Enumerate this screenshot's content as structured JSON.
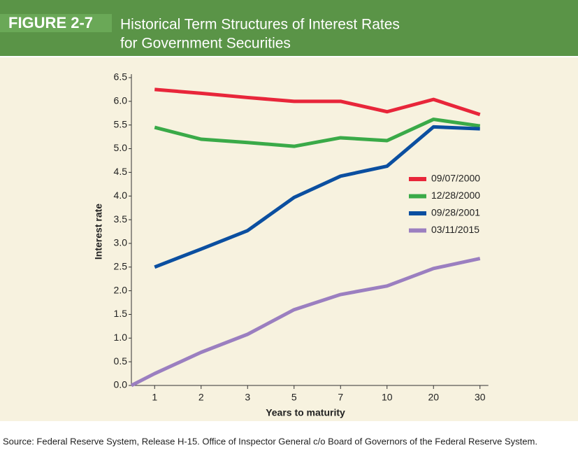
{
  "chart_data": {
    "type": "line",
    "figure_label": "FIGURE 2-7",
    "title": [
      "Historical Term Structures of Interest Rates",
      "for Government Securities"
    ],
    "y_label": "Interest rate",
    "x_label": "Years to maturity",
    "source": "Source: Federal Reserve System, Release H-15. Office of Inspector General c/o Board of Governors of the Federal Reserve System.",
    "categories": [
      null,
      "1",
      "2",
      "3",
      "5",
      "7",
      "10",
      "20",
      "30"
    ],
    "series": [
      {
        "name": "09/07/2000",
        "color": "#e8263a",
        "values": [
          null,
          6.25,
          6.17,
          6.08,
          6.0,
          6.0,
          5.78,
          6.04,
          5.72
        ]
      },
      {
        "name": "12/28/2000",
        "color": "#3aaa48",
        "values": [
          null,
          5.45,
          5.2,
          5.13,
          5.05,
          5.23,
          5.17,
          5.62,
          5.48
        ]
      },
      {
        "name": "09/28/2001",
        "color": "#0b4fa0",
        "values": [
          null,
          2.5,
          2.88,
          3.27,
          3.97,
          4.42,
          4.63,
          5.46,
          5.42
        ]
      },
      {
        "name": "03/11/2015",
        "color": "#9b7fc0",
        "values": [
          0,
          0.25,
          0.7,
          1.08,
          1.6,
          1.92,
          2.1,
          2.47,
          2.68
        ]
      }
    ],
    "ylim": [
      0,
      6.5
    ],
    "yticks": [
      {
        "value": 0,
        "label": "0.0"
      },
      0.5,
      {
        "value": 1,
        "label": "1.0"
      },
      1.5,
      {
        "value": 2,
        "label": "2.0"
      },
      2.5,
      {
        "value": 3,
        "label": "3.0"
      },
      3.5,
      {
        "value": 4,
        "label": "4.0"
      },
      4.5,
      {
        "value": 5,
        "label": "5.0"
      },
      5.5,
      {
        "value": 6,
        "label": "6.0"
      },
      6.5
    ],
    "grid": false,
    "legend": "right"
  }
}
